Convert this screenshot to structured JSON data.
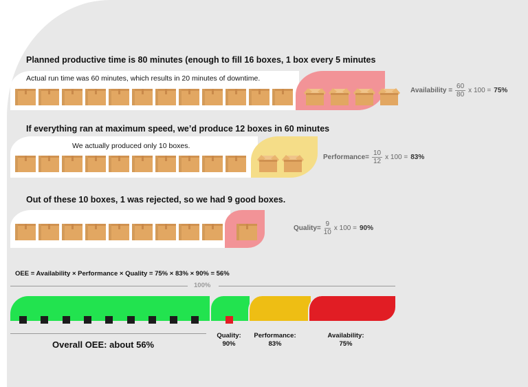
{
  "colors": {
    "background": "#e8e8e8",
    "box": "#e2a762",
    "downtime": "#f29397",
    "slow": "#f5dd88",
    "green": "#22e34f",
    "yellow": "#eebe14",
    "red": "#e11d24"
  },
  "availability": {
    "title": "Planned productive time is 80 minutes (enough to fill 16 boxes, 1 box every 5 minutes",
    "note": "Actual run time was 60 minutes, which results in 20 minutes of downtime.",
    "closed_boxes": 12,
    "open_boxes": 4,
    "label": "Availability =",
    "num": "60",
    "den": "80",
    "rest": "x 100 =",
    "result": "75%"
  },
  "performance": {
    "title": "If everything ran at maximum speed, we’d produce 12 boxes in 60 minutes",
    "note": "We actually produced only 10 boxes.",
    "closed_boxes": 10,
    "open_boxes": 2,
    "label": "Performance=",
    "num": "10",
    "den": "12",
    "rest": "x 100 =",
    "result": "83%"
  },
  "quality": {
    "title": "Out of these 10 boxes, 1 was rejected, so we had 9 good boxes.",
    "closed_boxes": 9,
    "rejected_boxes": 1,
    "label": "Quality=",
    "num": "9",
    "den": "10",
    "rest": "x 100 =",
    "result": "90%"
  },
  "oee": {
    "formula": "OEE = Availability × Performance × Quality = 75% × 83% × 90% = 56%",
    "full_label": "100%",
    "good_units": 9,
    "rejected_units": 1,
    "overall": "Overall OEE: about 56%",
    "legend": [
      {
        "name": "Quality:",
        "value": "90%"
      },
      {
        "name": "Performance:",
        "value": "83%"
      },
      {
        "name": "Availability:",
        "value": "75%"
      }
    ]
  }
}
